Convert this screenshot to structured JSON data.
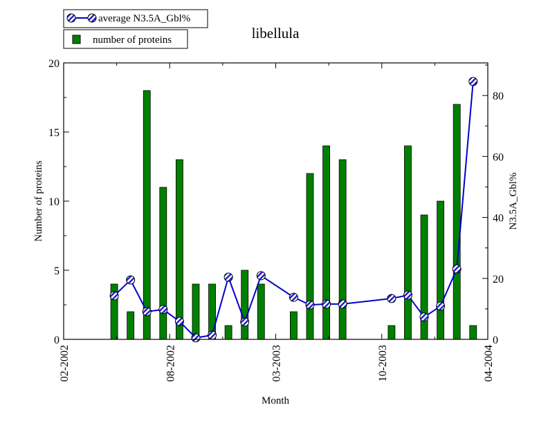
{
  "chart_data": {
    "type": "bar",
    "title": "libellula",
    "xlabel": "Month",
    "ylabel": "Number of proteins",
    "y2label": "N3.5A_Gbl%",
    "x_ticks": [
      "02-2002",
      "08-2002",
      "03-2003",
      "10-2003",
      "04-2004"
    ],
    "x_range_months": [
      0,
      26
    ],
    "ylim": [
      0,
      20
    ],
    "y_ticks": [
      0,
      5,
      10,
      15,
      20
    ],
    "y2lim": [
      0,
      90.7
    ],
    "y2_ticks": [
      0,
      20,
      40,
      60,
      80
    ],
    "legend_placement": "top-left, outside plot",
    "colors": {
      "bars": "#008000",
      "line": "#0000cc"
    },
    "series": [
      {
        "name": "number of proteins",
        "type": "bar",
        "axis": "left",
        "x": [
          3.1,
          4.1,
          5.1,
          6.1,
          7.1,
          8.1,
          9.1,
          10.1,
          11.1,
          12.1,
          14.1,
          15.1,
          16.1,
          17.1,
          20.1,
          21.1,
          22.1,
          23.1,
          24.1,
          25.1
        ],
        "values": [
          4,
          2,
          18,
          11,
          13,
          4,
          4,
          1,
          5,
          4,
          2,
          12,
          14,
          13,
          1,
          14,
          9,
          10,
          17,
          1
        ]
      },
      {
        "name": "average N3.5A_Gbl%",
        "type": "line",
        "axis": "right",
        "x": [
          3.1,
          4.1,
          5.1,
          6.1,
          7.1,
          8.1,
          9.1,
          10.1,
          11.1,
          12.1,
          14.1,
          15.1,
          16.1,
          17.1,
          20.1,
          21.1,
          22.1,
          23.1,
          24.1,
          25.1
        ],
        "values": [
          14.3,
          19.5,
          9.1,
          9.8,
          5.9,
          0.5,
          1.4,
          20.4,
          5.7,
          20.9,
          13.8,
          11.3,
          11.6,
          11.6,
          13.4,
          14.5,
          7.3,
          10.9,
          23.1,
          84.6
        ]
      }
    ]
  }
}
